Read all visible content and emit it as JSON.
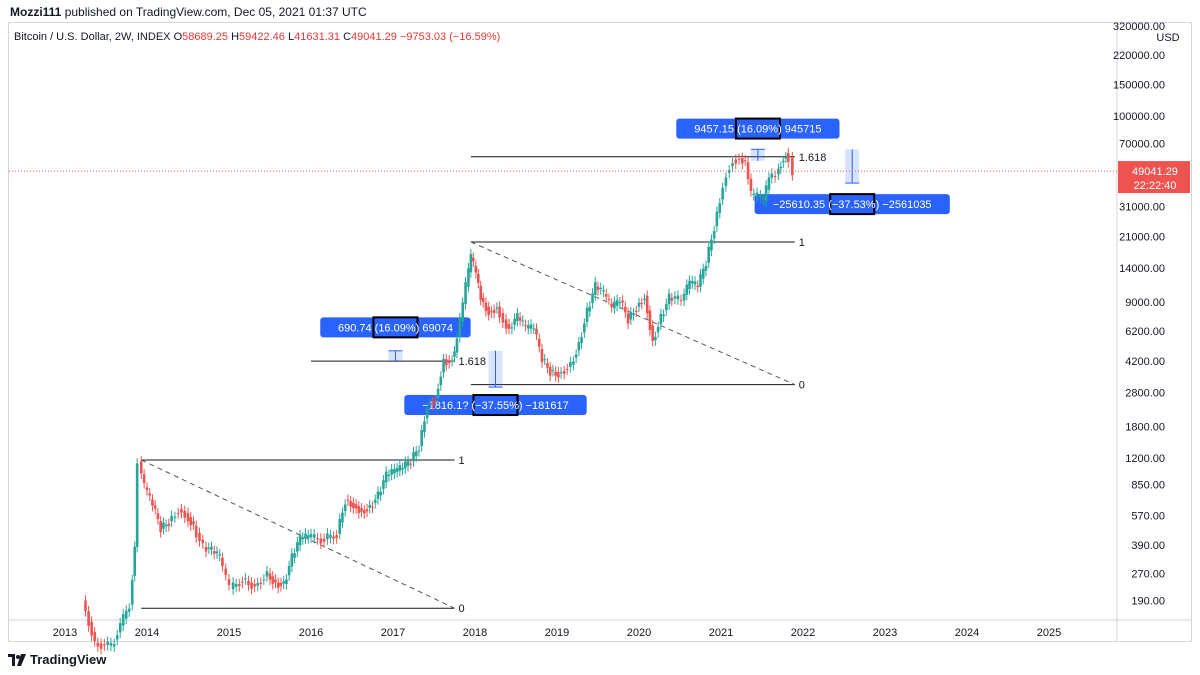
{
  "header": {
    "user": "Mozzi111",
    "published": "published on TradingView.com, Dec 05, 2021 01:37 UTC"
  },
  "legend": {
    "symbol": "Bitcoin / U.S. Dollar, 2W, INDEX",
    "open_label": "O",
    "open": "58689.25",
    "high_label": "H",
    "high": "59422.46",
    "low_label": "L",
    "low": "41631.31",
    "close_label": "C",
    "close": "49041.29",
    "change": "−9753.03 (−16.59%)"
  },
  "price_axis": {
    "currency": "USD",
    "current_price": "49041.29",
    "countdown": "22:22:40"
  },
  "footer": {
    "brand": "TradingView"
  },
  "colors": {
    "up": "#26a69a",
    "down": "#ef5350",
    "tag": "#2962ff",
    "text": "#131722"
  },
  "chart_data": {
    "type": "candlestick",
    "title": "Bitcoin / U.S. Dollar, 2W, INDEX",
    "y_scale": "log",
    "ylim": [
      150,
      320000
    ],
    "xlim": [
      2013.0,
      2025.9
    ],
    "y_ticks": [
      "320000.00",
      "220000.00",
      "150000.00",
      "100000.00",
      "70000.00",
      "31000.00",
      "21000.00",
      "14000.00",
      "9000.00",
      "6200.00",
      "4200.00",
      "2800.00",
      "1800.00",
      "1200.00",
      "850.00",
      "570.00",
      "390.00",
      "270.00",
      "190.00"
    ],
    "x_ticks": [
      "2013",
      "2014",
      "2015",
      "2016",
      "2017",
      "2018",
      "2019",
      "2020",
      "2021",
      "2022",
      "2023",
      "2024",
      "2025"
    ],
    "price_path": [
      [
        2013.25,
        190
      ],
      [
        2013.4,
        110
      ],
      [
        2013.6,
        105
      ],
      [
        2013.82,
        180
      ],
      [
        2013.88,
        380
      ],
      [
        2013.93,
        1150
      ],
      [
        2014.0,
        820
      ],
      [
        2014.1,
        650
      ],
      [
        2014.2,
        480
      ],
      [
        2014.3,
        530
      ],
      [
        2014.42,
        620
      ],
      [
        2014.5,
        590
      ],
      [
        2014.6,
        500
      ],
      [
        2014.72,
        380
      ],
      [
        2014.82,
        360
      ],
      [
        2014.92,
        330
      ],
      [
        2015.0,
        250
      ],
      [
        2015.05,
        220
      ],
      [
        2015.2,
        250
      ],
      [
        2015.35,
        230
      ],
      [
        2015.5,
        270
      ],
      [
        2015.6,
        240
      ],
      [
        2015.7,
        235
      ],
      [
        2015.8,
        330
      ],
      [
        2015.9,
        420
      ],
      [
        2016.0,
        430
      ],
      [
        2016.2,
        420
      ],
      [
        2016.35,
        450
      ],
      [
        2016.45,
        700
      ],
      [
        2016.55,
        660
      ],
      [
        2016.65,
        610
      ],
      [
        2016.75,
        640
      ],
      [
        2016.85,
        740
      ],
      [
        2016.95,
        950
      ],
      [
        2017.05,
        1000
      ],
      [
        2017.15,
        1050
      ],
      [
        2017.25,
        1150
      ],
      [
        2017.35,
        1400
      ],
      [
        2017.45,
        2400
      ],
      [
        2017.55,
        2600
      ],
      [
        2017.65,
        4300
      ],
      [
        2017.72,
        4200
      ],
      [
        2017.78,
        4700
      ],
      [
        2017.85,
        7000
      ],
      [
        2017.92,
        11000
      ],
      [
        2017.98,
        16000
      ],
      [
        2018.04,
        13000
      ],
      [
        2018.1,
        9500
      ],
      [
        2018.2,
        8000
      ],
      [
        2018.3,
        8500
      ],
      [
        2018.38,
        7200
      ],
      [
        2018.45,
        6400
      ],
      [
        2018.55,
        7400
      ],
      [
        2018.65,
        6400
      ],
      [
        2018.75,
        6400
      ],
      [
        2018.85,
        4300
      ],
      [
        2018.95,
        3700
      ],
      [
        2019.05,
        3600
      ],
      [
        2019.2,
        4000
      ],
      [
        2019.3,
        5300
      ],
      [
        2019.4,
        8000
      ],
      [
        2019.5,
        11000
      ],
      [
        2019.6,
        10000
      ],
      [
        2019.7,
        8300
      ],
      [
        2019.8,
        9200
      ],
      [
        2019.9,
        7200
      ],
      [
        2020.0,
        8500
      ],
      [
        2020.1,
        9800
      ],
      [
        2020.2,
        5500
      ],
      [
        2020.3,
        7500
      ],
      [
        2020.4,
        9500
      ],
      [
        2020.55,
        9200
      ],
      [
        2020.65,
        11500
      ],
      [
        2020.75,
        11000
      ],
      [
        2020.85,
        15000
      ],
      [
        2020.95,
        24000
      ],
      [
        2021.02,
        34000
      ],
      [
        2021.1,
        48000
      ],
      [
        2021.18,
        57000
      ],
      [
        2021.26,
        58000
      ],
      [
        2021.33,
        55000
      ],
      [
        2021.4,
        36000
      ],
      [
        2021.48,
        35000
      ],
      [
        2021.55,
        33000
      ],
      [
        2021.62,
        45000
      ],
      [
        2021.7,
        47000
      ],
      [
        2021.76,
        55000
      ],
      [
        2021.82,
        62000
      ],
      [
        2021.87,
        58689
      ],
      [
        2021.92,
        49041
      ]
    ],
    "annotations": [
      {
        "kind": "fib",
        "label": "1",
        "y": 1170,
        "x": [
          2013.93,
          2017.75
        ]
      },
      {
        "kind": "fib",
        "label": "0",
        "y": 172,
        "x": [
          2013.93,
          2017.75
        ]
      },
      {
        "kind": "fib",
        "label": "1.618",
        "y": 4200,
        "x": [
          2016.0,
          2017.75
        ]
      },
      {
        "kind": "fib",
        "label": "1",
        "y": 19600,
        "x": [
          2017.95,
          2021.9
        ]
      },
      {
        "kind": "fib",
        "label": "0",
        "y": 3100,
        "x": [
          2017.95,
          2021.9
        ]
      },
      {
        "kind": "fib",
        "label": "1.618",
        "y": 59000,
        "x": [
          2017.95,
          2021.9
        ]
      },
      {
        "kind": "trend",
        "x": [
          2013.93,
          2017.75
        ],
        "y": [
          1170,
          172
        ]
      },
      {
        "kind": "trend",
        "x": [
          2017.95,
          2021.9
        ],
        "y": [
          19600,
          3100
        ]
      },
      {
        "kind": "measure",
        "text": "690.74 (16.09%) 69074",
        "x": 2017.03,
        "y": [
          4200,
          4800
        ],
        "tag_y": 6500
      },
      {
        "kind": "measure",
        "text": "−1816.1? (−37.55%) −181617",
        "x": 2018.25,
        "y": [
          4800,
          3000
        ],
        "tag_y": 2380
      },
      {
        "kind": "measure",
        "text": "9457.15 (16.09%) 945715",
        "x": 2021.45,
        "y": [
          56000,
          65000
        ],
        "tag_y": 85000
      },
      {
        "kind": "measure",
        "text": "−25610.35 (−37.53%) −2561035",
        "x": 2022.6,
        "y": [
          65000,
          42000
        ],
        "tag_y": 32000
      }
    ]
  }
}
